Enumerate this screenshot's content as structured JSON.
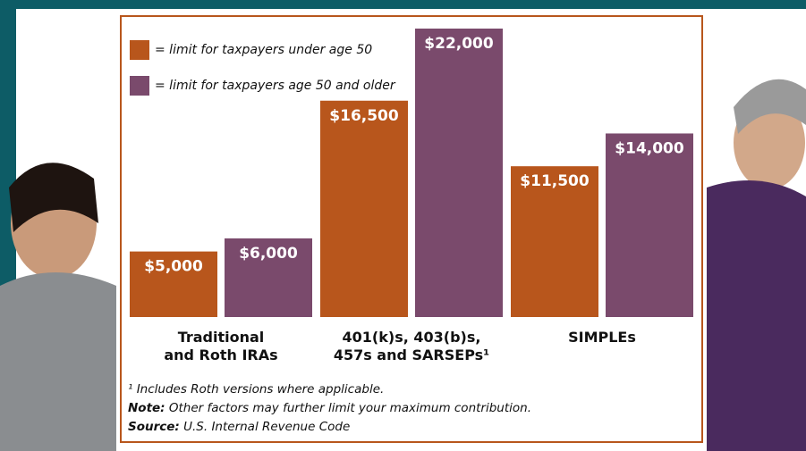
{
  "chart_data": {
    "type": "bar",
    "categories": [
      "Traditional\nand Roth IRAs",
      "401(k)s, 403(b)s,\n457s and SARSEPs¹",
      "SIMPLEs"
    ],
    "series": [
      {
        "name": "= limit for taxpayers under age 50",
        "color": "#b8561c",
        "values": [
          5000,
          16500,
          11500
        ],
        "value_labels": [
          "$5,000",
          "$16,500",
          "$11,500"
        ]
      },
      {
        "name": "= limit for taxpayers age 50 and older",
        "color": "#7a4a6c",
        "values": [
          6000,
          22000,
          14000
        ],
        "value_labels": [
          "$6,000",
          "$22,000",
          "$14,000"
        ]
      }
    ],
    "ylim": [
      0,
      22000
    ],
    "notes": [
      {
        "text": "¹ Includes Roth versions where applicable."
      },
      {
        "label": "Note:",
        "text": " Other factors may further limit your maximum contribution."
      },
      {
        "label": "Source:",
        "text": " U.S. Internal Revenue Code"
      }
    ]
  }
}
